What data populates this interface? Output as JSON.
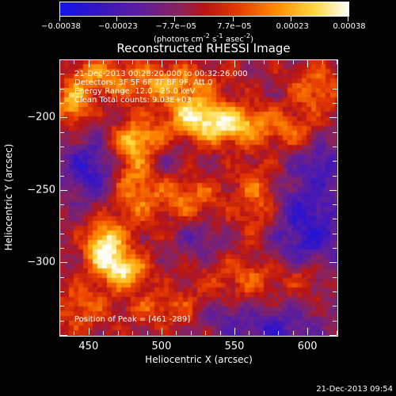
{
  "chart_data": {
    "type": "heatmap",
    "title": "Reconstructed RHESSI Image",
    "xlabel": "Heliocentric X (arcsec)",
    "ylabel": "Heliocentric Y (arcsec)",
    "xlim": [
      430,
      620
    ],
    "ylim": [
      -350,
      -160
    ],
    "x_ticks": [
      450,
      500,
      550,
      600
    ],
    "y_ticks": [
      -200,
      -250,
      -300
    ],
    "colorbar": {
      "range": [
        -0.00038,
        0.00038
      ],
      "tick_labels": [
        "-0.00038",
        "-0.00023",
        "-7.7e-05",
        "7.7e-05",
        "0.00023",
        "0.00038"
      ],
      "units": "(photons cm-2 s-1 asec-2)"
    },
    "annotations": [
      "21-Dec-2013 00:28:20.000 to 00:32:26.000",
      "Detectors: 3F 5F 6F 7F 8F 9F, Att 0",
      "Energy Range: 12.0 - 25.0 keV",
      "Clean      Total counts: 9.03E+03"
    ],
    "peak_label": "Position of Peak = [461 -289]",
    "peak": {
      "x": 461,
      "y": -289
    },
    "blobs": [
      {
        "x": 461,
        "y": -289,
        "sx": 9,
        "sy": 12,
        "a": 1.0
      },
      {
        "x": 475,
        "y": -305,
        "sx": 10,
        "sy": 8,
        "a": 0.75
      },
      {
        "x": 545,
        "y": -205,
        "sx": 22,
        "sy": 9,
        "a": 0.85
      },
      {
        "x": 520,
        "y": -195,
        "sx": 14,
        "sy": 10,
        "a": 0.55
      },
      {
        "x": 440,
        "y": -190,
        "sx": 8,
        "sy": 10,
        "a": 0.7
      },
      {
        "x": 500,
        "y": -175,
        "sx": 25,
        "sy": 9,
        "a": 0.55
      },
      {
        "x": 480,
        "y": -240,
        "sx": 10,
        "sy": 25,
        "a": 0.5
      },
      {
        "x": 515,
        "y": -255,
        "sx": 18,
        "sy": 10,
        "a": 0.45
      },
      {
        "x": 565,
        "y": -255,
        "sx": 10,
        "sy": 18,
        "a": 0.45
      },
      {
        "x": 605,
        "y": -180,
        "sx": 12,
        "sy": 12,
        "a": 0.45
      },
      {
        "x": 560,
        "y": -310,
        "sx": 25,
        "sy": 10,
        "a": 0.35
      },
      {
        "x": 445,
        "y": -330,
        "sx": 12,
        "sy": 12,
        "a": 0.4
      },
      {
        "x": 500,
        "y": -330,
        "sx": 20,
        "sy": 8,
        "a": 0.35
      },
      {
        "x": 600,
        "y": -310,
        "sx": 10,
        "sy": 10,
        "a": 0.3
      },
      {
        "x": 485,
        "y": -215,
        "sx": 14,
        "sy": 8,
        "a": 0.45
      },
      {
        "x": 590,
        "y": -210,
        "sx": 10,
        "sy": 8,
        "a": 0.35
      },
      {
        "x": 455,
        "y": -170,
        "sx": 12,
        "sy": 8,
        "a": 0.45
      }
    ],
    "voids": [
      {
        "x": 450,
        "y": -235,
        "sx": 14,
        "sy": 16,
        "a": 0.9
      },
      {
        "x": 600,
        "y": -275,
        "sx": 18,
        "sy": 28,
        "a": 1.0
      },
      {
        "x": 575,
        "y": -345,
        "sx": 20,
        "sy": 10,
        "a": 0.8
      },
      {
        "x": 525,
        "y": -285,
        "sx": 10,
        "sy": 10,
        "a": 0.5
      },
      {
        "x": 540,
        "y": -335,
        "sx": 10,
        "sy": 8,
        "a": 0.5
      },
      {
        "x": 505,
        "y": -225,
        "sx": 8,
        "sy": 8,
        "a": 0.4
      },
      {
        "x": 610,
        "y": -230,
        "sx": 10,
        "sy": 10,
        "a": 0.6
      }
    ]
  },
  "footer_timestamp": "21-Dec-2013 09:54"
}
